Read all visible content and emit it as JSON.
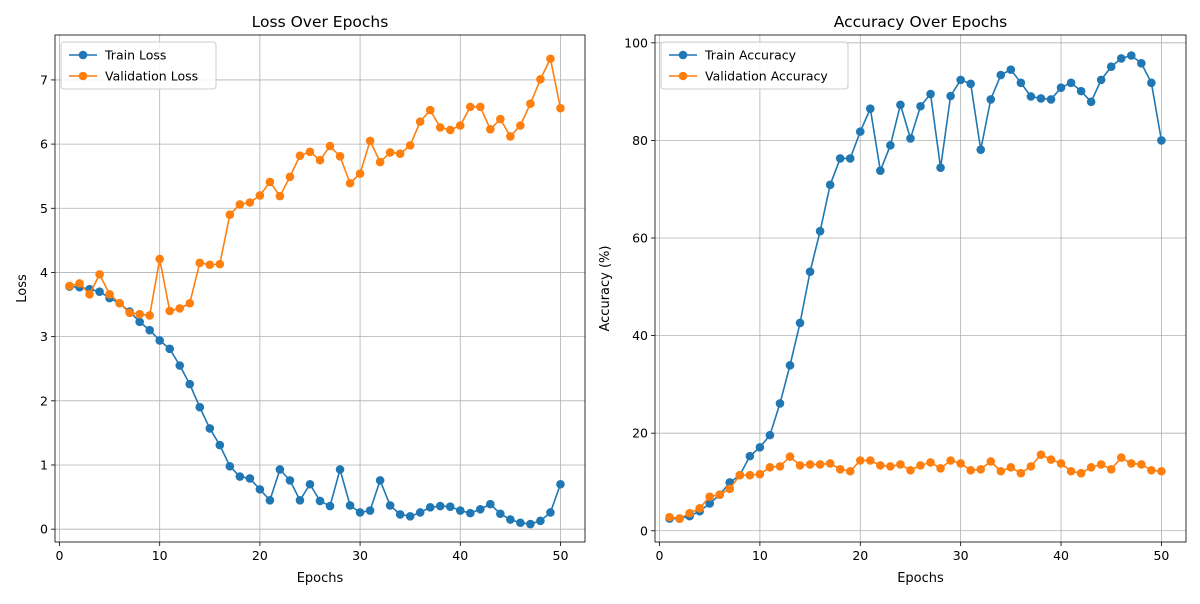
{
  "colors": {
    "train": "#1f77b4",
    "validation": "#ff7f0e"
  },
  "chart_data": [
    {
      "type": "line",
      "title": "Loss Over Epochs",
      "xlabel": "Epochs",
      "ylabel": "Loss",
      "xlim": [
        -0.45,
        52.45
      ],
      "ylim": [
        -0.2,
        7.7
      ],
      "xticks": [
        0,
        10,
        20,
        30,
        40,
        50
      ],
      "yticks": [
        0,
        1,
        2,
        3,
        4,
        5,
        6,
        7
      ],
      "grid": true,
      "legend": "top-left",
      "x": [
        1,
        2,
        3,
        4,
        5,
        6,
        7,
        8,
        9,
        10,
        11,
        12,
        13,
        14,
        15,
        16,
        17,
        18,
        19,
        20,
        21,
        22,
        23,
        24,
        25,
        26,
        27,
        28,
        29,
        30,
        31,
        32,
        33,
        34,
        35,
        36,
        37,
        38,
        39,
        40,
        41,
        42,
        43,
        44,
        45,
        46,
        47,
        48,
        49,
        50
      ],
      "series": [
        {
          "name": "Train Loss",
          "color": "#1f77b4",
          "values": [
            3.78,
            3.77,
            3.74,
            3.7,
            3.6,
            3.52,
            3.39,
            3.23,
            3.1,
            2.94,
            2.81,
            2.55,
            2.26,
            1.9,
            1.57,
            1.31,
            0.98,
            0.82,
            0.79,
            0.62,
            0.45,
            0.93,
            0.76,
            0.45,
            0.7,
            0.44,
            0.36,
            0.93,
            0.37,
            0.26,
            0.29,
            0.76,
            0.37,
            0.23,
            0.2,
            0.26,
            0.34,
            0.36,
            0.35,
            0.29,
            0.25,
            0.31,
            0.39,
            0.24,
            0.15,
            0.1,
            0.08,
            0.13,
            0.26,
            0.7
          ]
        },
        {
          "name": "Validation Loss",
          "color": "#ff7f0e",
          "values": [
            3.79,
            3.83,
            3.66,
            3.97,
            3.66,
            3.52,
            3.37,
            3.35,
            3.33,
            4.21,
            3.4,
            3.44,
            3.52,
            4.15,
            4.12,
            4.13,
            4.9,
            5.06,
            5.09,
            5.2,
            5.41,
            5.19,
            5.49,
            5.82,
            5.88,
            5.75,
            5.97,
            5.81,
            5.39,
            5.54,
            6.05,
            5.72,
            5.87,
            5.85,
            5.98,
            6.35,
            6.53,
            6.26,
            6.22,
            6.29,
            6.58,
            6.58,
            6.23,
            6.39,
            6.12,
            6.29,
            6.63,
            7.01,
            7.33,
            6.56
          ]
        }
      ]
    },
    {
      "type": "line",
      "title": "Accuracy Over Epochs",
      "xlabel": "Epochs",
      "ylabel": "Accuracy (%)",
      "xlim": [
        -0.45,
        52.45
      ],
      "ylim": [
        -2.3,
        101.6
      ],
      "xticks": [
        0,
        10,
        20,
        30,
        40,
        50
      ],
      "yticks": [
        0,
        20,
        40,
        60,
        80,
        100
      ],
      "grid": true,
      "legend": "top-left",
      "x": [
        1,
        2,
        3,
        4,
        5,
        6,
        7,
        8,
        9,
        10,
        11,
        12,
        13,
        14,
        15,
        16,
        17,
        18,
        19,
        20,
        21,
        22,
        23,
        24,
        25,
        26,
        27,
        28,
        29,
        30,
        31,
        32,
        33,
        34,
        35,
        36,
        37,
        38,
        39,
        40,
        41,
        42,
        43,
        44,
        45,
        46,
        47,
        48,
        49,
        50
      ],
      "series": [
        {
          "name": "Train Accuracy",
          "color": "#1f77b4",
          "values": [
            2.5,
            2.5,
            3.0,
            4.0,
            5.6,
            7.4,
            9.9,
            11.4,
            15.3,
            17.1,
            19.6,
            26.1,
            33.9,
            42.6,
            53.1,
            61.4,
            70.9,
            76.3,
            76.3,
            81.8,
            86.5,
            73.8,
            79.0,
            87.3,
            80.4,
            87.0,
            89.5,
            74.4,
            89.1,
            92.4,
            91.6,
            78.1,
            88.4,
            93.4,
            94.5,
            91.8,
            89.0,
            88.6,
            88.4,
            90.8,
            91.8,
            90.1,
            87.9,
            92.4,
            95.1,
            96.8,
            97.4,
            95.8,
            91.8,
            80.0
          ]
        },
        {
          "name": "Validation Accuracy",
          "color": "#ff7f0e",
          "values": [
            2.8,
            2.5,
            3.6,
            4.6,
            7.0,
            7.4,
            8.6,
            11.4,
            11.4,
            11.6,
            13.0,
            13.2,
            15.2,
            13.4,
            13.6,
            13.6,
            13.8,
            12.6,
            12.2,
            14.4,
            14.4,
            13.4,
            13.2,
            13.6,
            12.4,
            13.4,
            14.0,
            12.8,
            14.4,
            13.8,
            12.4,
            12.6,
            14.2,
            12.2,
            13.0,
            11.8,
            13.2,
            15.6,
            14.6,
            13.8,
            12.2,
            11.8,
            13.0,
            13.6,
            12.6,
            15.0,
            13.8,
            13.6,
            12.4,
            12.2
          ]
        }
      ]
    }
  ]
}
